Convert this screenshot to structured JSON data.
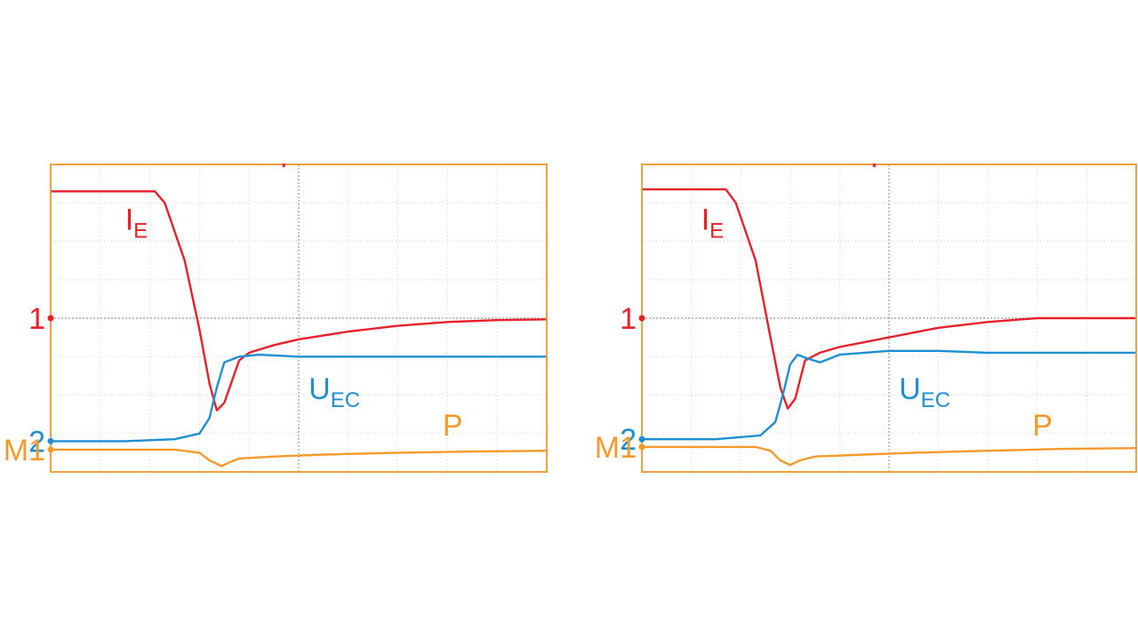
{
  "colors": {
    "ie": "#e8202a",
    "uec": "#1f8fd1",
    "p": "#f39a2b",
    "frame": "#f0a040",
    "grid": "#9a9a9a"
  },
  "chart_data": [
    {
      "type": "line",
      "title": "",
      "xlabel": "",
      "ylabel": "",
      "grid": true,
      "xlim": [
        0,
        10
      ],
      "ylim": [
        0,
        8
      ],
      "markers": [
        {
          "text": "1",
          "color": "ie",
          "y": 4.0
        },
        {
          "text": "2",
          "color": "uec",
          "y": 0.8
        },
        {
          "text": "M1",
          "color": "p",
          "y": 0.58
        }
      ],
      "series": [
        {
          "name": "IE",
          "sub": "E",
          "main": "I",
          "color": "ie",
          "label_pos": [
            1.5,
            6.3
          ],
          "x": [
            0,
            2.1,
            2.3,
            2.7,
            3.0,
            3.2,
            3.35,
            3.5,
            3.8,
            4.0,
            4.5,
            5.0,
            6.0,
            7.0,
            8.0,
            9.0,
            10.0
          ],
          "y": [
            7.3,
            7.3,
            7.0,
            5.5,
            3.7,
            2.3,
            1.6,
            1.8,
            2.9,
            3.1,
            3.3,
            3.45,
            3.65,
            3.8,
            3.9,
            3.95,
            3.97
          ]
        },
        {
          "name": "UEC",
          "sub": "EC",
          "main": "U",
          "color": "uec",
          "label_pos": [
            5.2,
            1.9
          ],
          "x": [
            0,
            1.5,
            2.5,
            3.0,
            3.2,
            3.35,
            3.5,
            3.8,
            4.2,
            5.0,
            6.0,
            7.0,
            8.0,
            9.0,
            10.0
          ],
          "y": [
            0.8,
            0.8,
            0.85,
            1.0,
            1.4,
            2.2,
            2.85,
            3.0,
            3.05,
            3.0,
            3.0,
            3.0,
            3.0,
            3.0,
            3.0
          ]
        },
        {
          "name": "P",
          "sub": "",
          "main": "P",
          "color": "p",
          "label_pos": [
            7.9,
            0.95
          ],
          "x": [
            0,
            2.5,
            3.0,
            3.2,
            3.45,
            3.6,
            3.8,
            4.5,
            5.5,
            7.0,
            8.5,
            10.0
          ],
          "y": [
            0.58,
            0.58,
            0.5,
            0.3,
            0.15,
            0.25,
            0.35,
            0.4,
            0.45,
            0.5,
            0.53,
            0.55
          ]
        }
      ]
    },
    {
      "type": "line",
      "title": "",
      "xlabel": "",
      "ylabel": "",
      "grid": true,
      "xlim": [
        0,
        10
      ],
      "ylim": [
        0,
        8
      ],
      "markers": [
        {
          "text": "1",
          "color": "ie",
          "y": 4.0
        },
        {
          "text": "2",
          "color": "uec",
          "y": 0.85
        },
        {
          "text": "M1",
          "color": "p",
          "y": 0.65
        }
      ],
      "series": [
        {
          "name": "IE",
          "sub": "E",
          "main": "I",
          "color": "ie",
          "label_pos": [
            1.2,
            6.3
          ],
          "x": [
            0,
            1.7,
            1.9,
            2.3,
            2.6,
            2.8,
            2.95,
            3.1,
            3.3,
            3.6,
            4.0,
            5.0,
            6.0,
            7.0,
            8.0,
            9.0,
            10.0
          ],
          "y": [
            7.35,
            7.35,
            7.0,
            5.5,
            3.5,
            2.2,
            1.65,
            1.9,
            2.9,
            3.1,
            3.25,
            3.5,
            3.75,
            3.9,
            4.0,
            4.0,
            4.0
          ]
        },
        {
          "name": "UEC",
          "sub": "EC",
          "main": "U",
          "color": "uec",
          "label_pos": [
            5.2,
            1.9
          ],
          "x": [
            0,
            1.5,
            2.4,
            2.7,
            2.85,
            3.0,
            3.15,
            3.35,
            3.6,
            4.0,
            5.0,
            6.0,
            7.0,
            8.0,
            9.0,
            10.0
          ],
          "y": [
            0.85,
            0.85,
            0.95,
            1.3,
            2.0,
            2.8,
            3.05,
            2.95,
            2.85,
            3.05,
            3.15,
            3.15,
            3.1,
            3.1,
            3.1,
            3.1
          ]
        },
        {
          "name": "P",
          "sub": "",
          "main": "P",
          "color": "p",
          "label_pos": [
            7.9,
            0.95
          ],
          "x": [
            0,
            2.3,
            2.6,
            2.8,
            3.0,
            3.2,
            3.5,
            4.5,
            5.5,
            7.0,
            8.5,
            10.0
          ],
          "y": [
            0.65,
            0.65,
            0.55,
            0.3,
            0.18,
            0.3,
            0.4,
            0.45,
            0.5,
            0.55,
            0.6,
            0.62
          ]
        }
      ]
    }
  ]
}
